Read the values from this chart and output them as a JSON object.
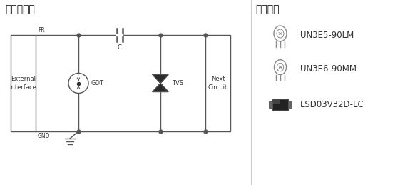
{
  "title_left": "防护电路图",
  "title_right": "产品外观",
  "label_external": "External\nInterface",
  "label_next": "Next\nCircuit",
  "label_gdt": "GDT",
  "label_tvs": "TVS",
  "label_c": "C",
  "label_fr": "FR",
  "label_gnd": "GND",
  "products": [
    "UN3E5-90LM",
    "UN3E6-90MM",
    "ESD03V32D-LC"
  ],
  "bg_color": "#ffffff",
  "line_color": "#555555",
  "text_color": "#333333",
  "title_fontsize": 10,
  "label_fontsize": 6.5,
  "prod_fontsize": 8.5
}
